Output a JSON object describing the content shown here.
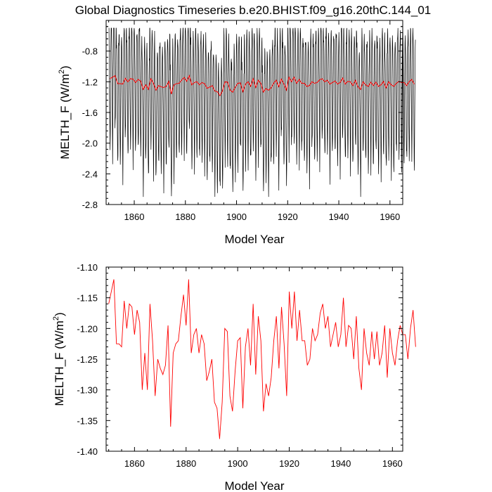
{
  "title": "Global Diagnostics Timeseries b.e20.BHIST.f09_g16.20thC.144_01",
  "chart_data": [
    {
      "type": "line",
      "xlabel": "Model Year",
      "ylabel": "MELTH_F (W/m",
      "ylabel_sup": "2",
      "ylabel_close": ")",
      "xlim": [
        1849,
        1965
      ],
      "ylim": [
        -2.8,
        -0.4
      ],
      "xticks": [
        1860,
        1880,
        1900,
        1920,
        1940,
        1960
      ],
      "yticks": [
        -2.8,
        -2.4,
        -2.0,
        -1.6,
        -1.2,
        -0.8
      ],
      "ytick_labels": [
        "-2.8",
        "-2.4",
        "-2.0",
        "-1.6",
        "-1.2",
        "-0.8"
      ],
      "series": [
        {
          "kind": "monthly",
          "color": "#000000",
          "months_per_year": 12,
          "x_start": 1850,
          "x_end": 1964,
          "monthly_cycle_approx": [
            -0.62,
            -0.68,
            -0.95,
            -1.35,
            -1.75,
            -2.05,
            -2.25,
            -2.05,
            -1.55,
            -1.05,
            -0.75,
            -0.64
          ]
        },
        {
          "kind": "annual",
          "color": "#ff0000",
          "x_start": 1850,
          "values": "shared_annual"
        }
      ]
    },
    {
      "type": "line",
      "xlabel": "Model Year",
      "ylabel": "MELTH_F (W/m",
      "ylabel_sup": "2",
      "ylabel_close": ")",
      "xlim": [
        1849,
        1964
      ],
      "ylim": [
        -1.4,
        -1.1
      ],
      "xticks": [
        1860,
        1880,
        1900,
        1920,
        1940,
        1960
      ],
      "yticks": [
        -1.4,
        -1.35,
        -1.3,
        -1.25,
        -1.2,
        -1.15,
        -1.1
      ],
      "ytick_labels": [
        "-1.40",
        "-1.35",
        "-1.30",
        "-1.25",
        "-1.20",
        "-1.15",
        "-1.10"
      ],
      "series": [
        {
          "kind": "annual",
          "color": "#ff0000",
          "x_start": 1850,
          "values": "shared_annual"
        }
      ]
    }
  ],
  "annual_values": [
    -1.16,
    -1.14,
    -1.12,
    -1.225,
    -1.225,
    -1.23,
    -1.155,
    -1.2,
    -1.16,
    -1.165,
    -1.21,
    -1.17,
    -1.19,
    -1.3,
    -1.24,
    -1.3,
    -1.16,
    -1.22,
    -1.31,
    -1.25,
    -1.265,
    -1.275,
    -1.26,
    -1.195,
    -1.36,
    -1.24,
    -1.225,
    -1.22,
    -1.18,
    -1.145,
    -1.195,
    -1.12,
    -1.24,
    -1.21,
    -1.2,
    -1.24,
    -1.21,
    -1.225,
    -1.285,
    -1.27,
    -1.25,
    -1.32,
    -1.33,
    -1.38,
    -1.32,
    -1.2,
    -1.205,
    -1.31,
    -1.335,
    -1.27,
    -1.22,
    -1.215,
    -1.33,
    -1.23,
    -1.2,
    -1.26,
    -1.16,
    -1.275,
    -1.18,
    -1.22,
    -1.335,
    -1.29,
    -1.31,
    -1.28,
    -1.22,
    -1.18,
    -1.265,
    -1.165,
    -1.225,
    -1.31,
    -1.14,
    -1.2,
    -1.14,
    -1.22,
    -1.17,
    -1.22,
    -1.22,
    -1.26,
    -1.25,
    -1.2,
    -1.22,
    -1.21,
    -1.175,
    -1.16,
    -1.2,
    -1.18,
    -1.23,
    -1.21,
    -1.19,
    -1.23,
    -1.21,
    -1.15,
    -1.23,
    -1.195,
    -1.2,
    -1.25,
    -1.18,
    -1.265,
    -1.3,
    -1.2,
    -1.24,
    -1.26,
    -1.205,
    -1.25,
    -1.205,
    -1.26,
    -1.24,
    -1.195,
    -1.28,
    -1.2,
    -1.24,
    -1.26,
    -1.22,
    -1.195,
    -1.21,
    -1.21,
    -1.25,
    -1.2,
    -1.17,
    -1.23
  ]
}
